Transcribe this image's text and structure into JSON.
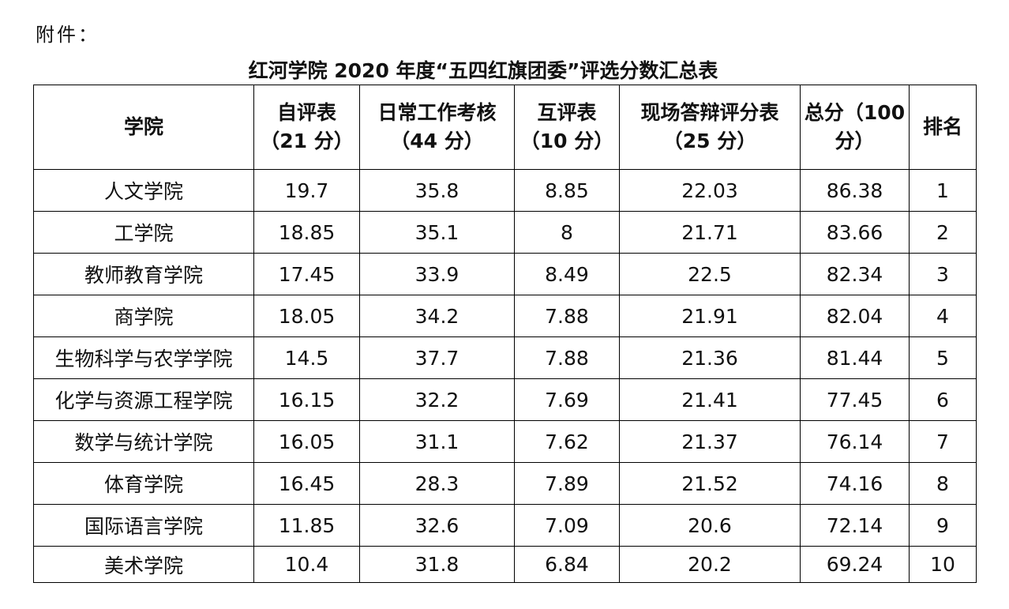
{
  "header": {
    "attachment": "附件：",
    "title": "红河学院 2020 年度“五四红旗团委”评选分数汇总表"
  },
  "table": {
    "columns": [
      "学院",
      "自评表\n（21 分）",
      "日常工作考核\n（44 分）",
      "互评表\n（10 分）",
      "现场答辩评分表\n（25 分）",
      "总分（100\n分）",
      "排名"
    ],
    "rows": [
      [
        "人文学院",
        "19.7",
        "35.8",
        "8.85",
        "22.03",
        "86.38",
        "1"
      ],
      [
        "工学院",
        "18.85",
        "35.1",
        "8",
        "21.71",
        "83.66",
        "2"
      ],
      [
        "教师教育学院",
        "17.45",
        "33.9",
        "8.49",
        "22.5",
        "82.34",
        "3"
      ],
      [
        "商学院",
        "18.05",
        "34.2",
        "7.88",
        "21.91",
        "82.04",
        "4"
      ],
      [
        "生物科学与农学学院",
        "14.5",
        "37.7",
        "7.88",
        "21.36",
        "81.44",
        "5"
      ],
      [
        "化学与资源工程学院",
        "16.15",
        "32.2",
        "7.69",
        "21.41",
        "77.45",
        "6"
      ],
      [
        "数学与统计学院",
        "16.05",
        "31.1",
        "7.62",
        "21.37",
        "76.14",
        "7"
      ],
      [
        "体育学院",
        "16.45",
        "28.3",
        "7.89",
        "21.52",
        "74.16",
        "8"
      ],
      [
        "国际语言学院",
        "11.85",
        "32.6",
        "7.09",
        "20.6",
        "72.14",
        "9"
      ],
      [
        "美术学院",
        "10.4",
        "31.8",
        "6.84",
        "20.2",
        "69.24",
        "10"
      ]
    ]
  }
}
